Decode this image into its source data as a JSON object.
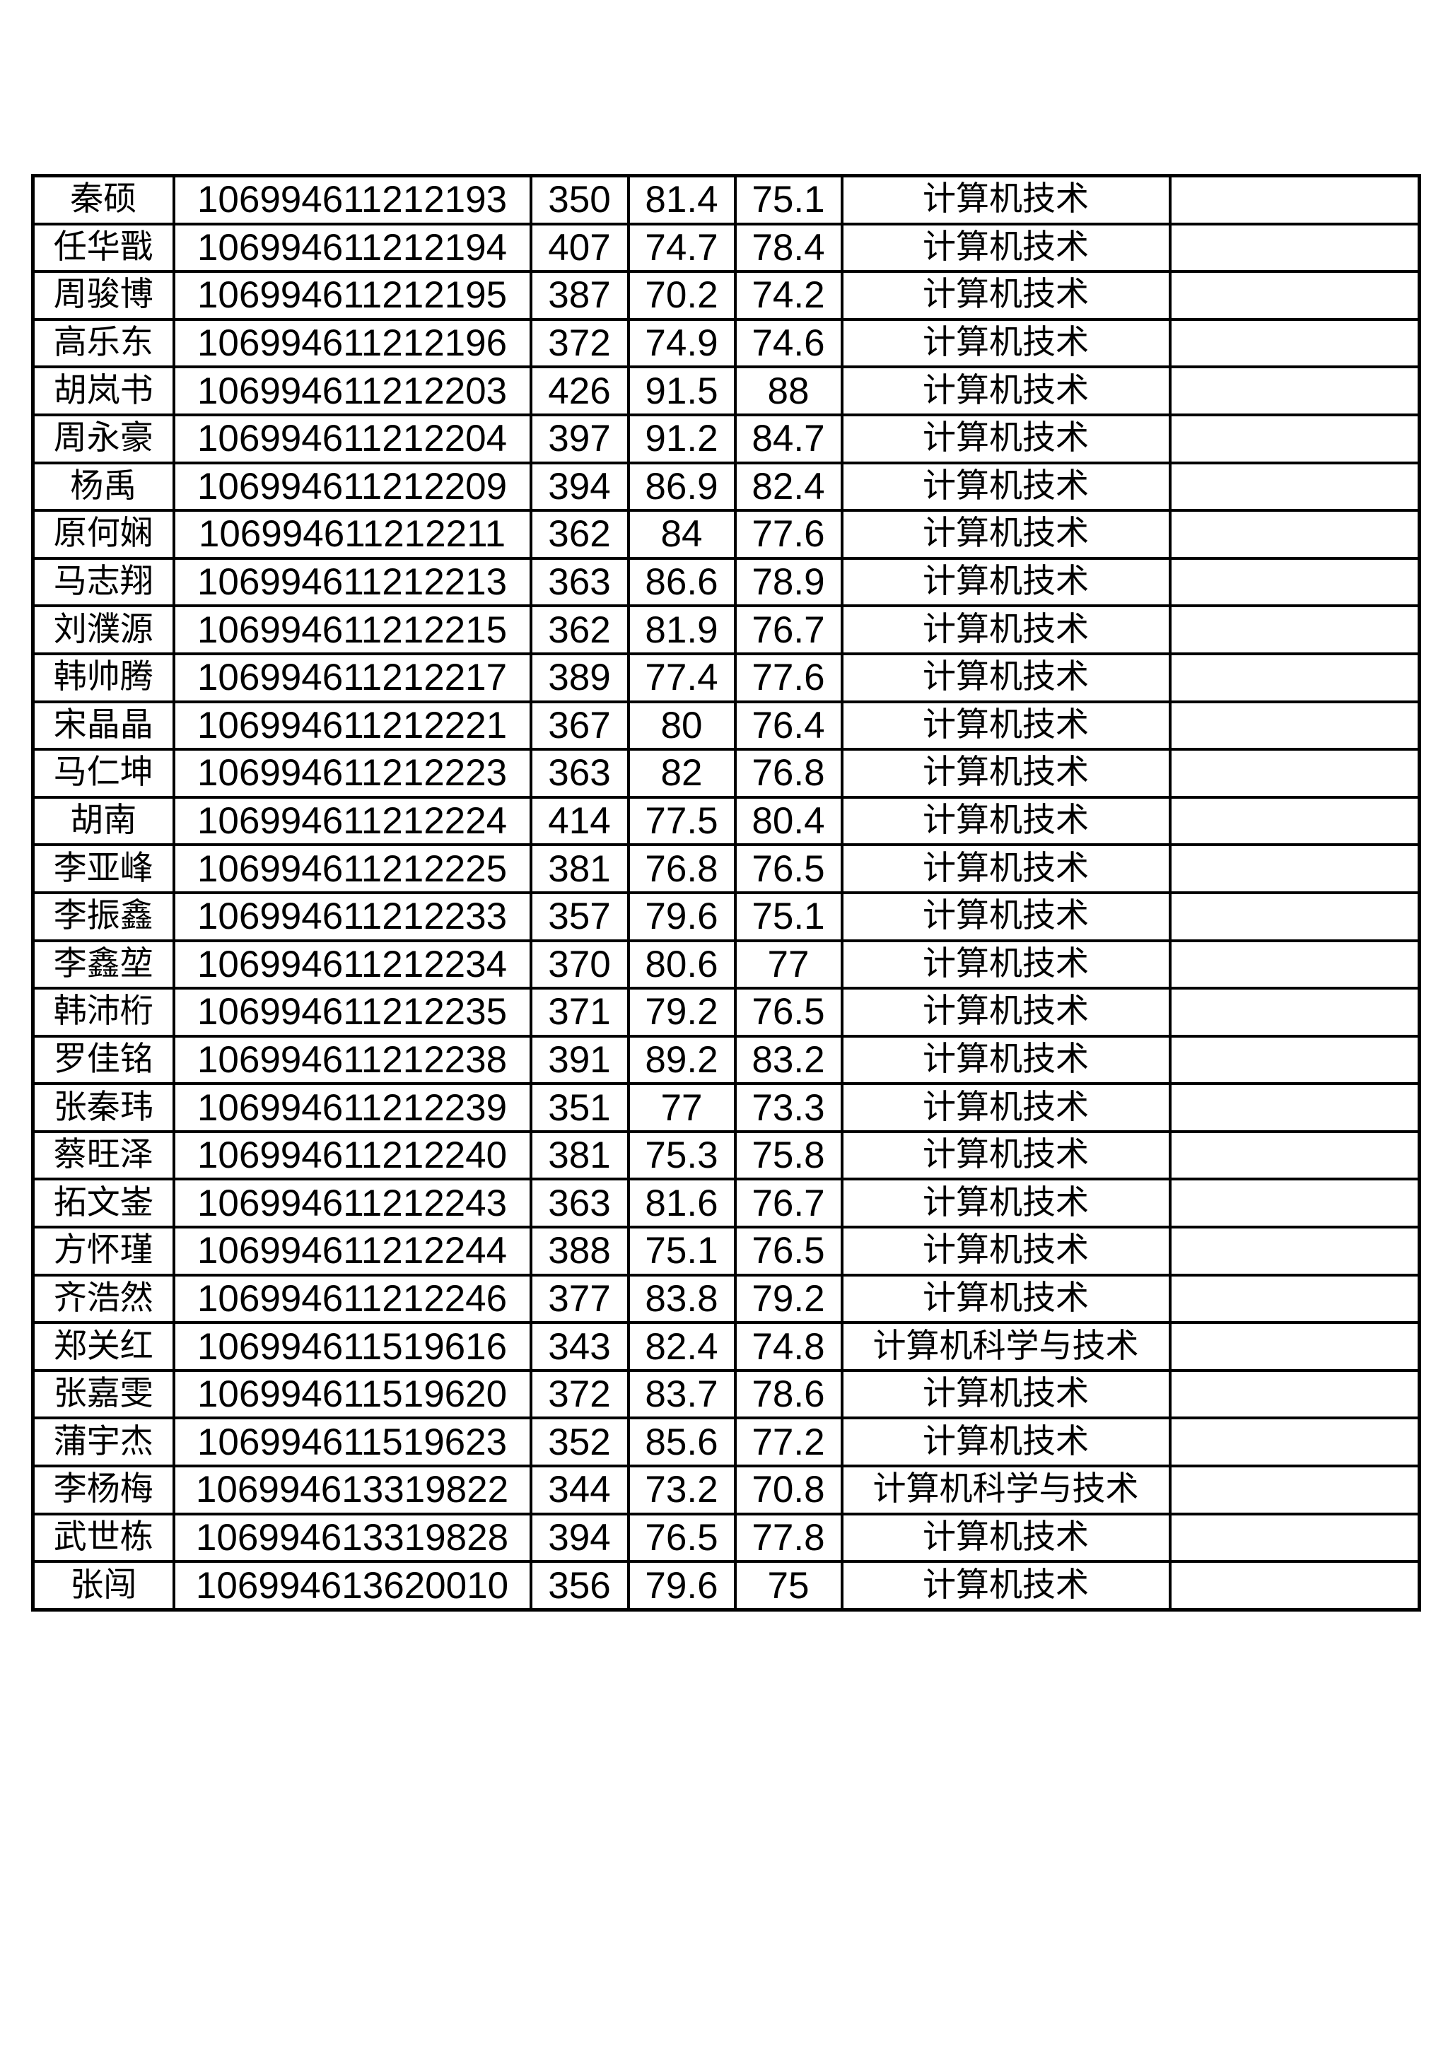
{
  "page": {
    "background_color": "#ffffff",
    "border_color": "#000000"
  },
  "table": {
    "fields": [
      "name",
      "candidate_no",
      "total_score",
      "score_1",
      "score_2",
      "major",
      "remark"
    ],
    "rows": [
      {
        "name": "秦硕",
        "candidate_no": "106994611212193",
        "total_score": "350",
        "score_1": "81.4",
        "score_2": "75.1",
        "major": "计算机技术",
        "remark": ""
      },
      {
        "name": "任华戬",
        "candidate_no": "106994611212194",
        "total_score": "407",
        "score_1": "74.7",
        "score_2": "78.4",
        "major": "计算机技术",
        "remark": ""
      },
      {
        "name": "周骏博",
        "candidate_no": "106994611212195",
        "total_score": "387",
        "score_1": "70.2",
        "score_2": "74.2",
        "major": "计算机技术",
        "remark": ""
      },
      {
        "name": "高乐东",
        "candidate_no": "106994611212196",
        "total_score": "372",
        "score_1": "74.9",
        "score_2": "74.6",
        "major": "计算机技术",
        "remark": ""
      },
      {
        "name": "胡岚书",
        "candidate_no": "106994611212203",
        "total_score": "426",
        "score_1": "91.5",
        "score_2": "88",
        "major": "计算机技术",
        "remark": ""
      },
      {
        "name": "周永豪",
        "candidate_no": "106994611212204",
        "total_score": "397",
        "score_1": "91.2",
        "score_2": "84.7",
        "major": "计算机技术",
        "remark": ""
      },
      {
        "name": "杨禹",
        "candidate_no": "106994611212209",
        "total_score": "394",
        "score_1": "86.9",
        "score_2": "82.4",
        "major": "计算机技术",
        "remark": ""
      },
      {
        "name": "原何娴",
        "candidate_no": "106994611212211",
        "total_score": "362",
        "score_1": "84",
        "score_2": "77.6",
        "major": "计算机技术",
        "remark": ""
      },
      {
        "name": "马志翔",
        "candidate_no": "106994611212213",
        "total_score": "363",
        "score_1": "86.6",
        "score_2": "78.9",
        "major": "计算机技术",
        "remark": ""
      },
      {
        "name": "刘濮源",
        "candidate_no": "106994611212215",
        "total_score": "362",
        "score_1": "81.9",
        "score_2": "76.7",
        "major": "计算机技术",
        "remark": ""
      },
      {
        "name": "韩帅腾",
        "candidate_no": "106994611212217",
        "total_score": "389",
        "score_1": "77.4",
        "score_2": "77.6",
        "major": "计算机技术",
        "remark": ""
      },
      {
        "name": "宋晶晶",
        "candidate_no": "106994611212221",
        "total_score": "367",
        "score_1": "80",
        "score_2": "76.4",
        "major": "计算机技术",
        "remark": ""
      },
      {
        "name": "马仁坤",
        "candidate_no": "106994611212223",
        "total_score": "363",
        "score_1": "82",
        "score_2": "76.8",
        "major": "计算机技术",
        "remark": ""
      },
      {
        "name": "胡南",
        "candidate_no": "106994611212224",
        "total_score": "414",
        "score_1": "77.5",
        "score_2": "80.4",
        "major": "计算机技术",
        "remark": ""
      },
      {
        "name": "李亚峰",
        "candidate_no": "106994611212225",
        "total_score": "381",
        "score_1": "76.8",
        "score_2": "76.5",
        "major": "计算机技术",
        "remark": ""
      },
      {
        "name": "李振鑫",
        "candidate_no": "106994611212233",
        "total_score": "357",
        "score_1": "79.6",
        "score_2": "75.1",
        "major": "计算机技术",
        "remark": ""
      },
      {
        "name": "李鑫堃",
        "candidate_no": "106994611212234",
        "total_score": "370",
        "score_1": "80.6",
        "score_2": "77",
        "major": "计算机技术",
        "remark": ""
      },
      {
        "name": "韩沛桁",
        "candidate_no": "106994611212235",
        "total_score": "371",
        "score_1": "79.2",
        "score_2": "76.5",
        "major": "计算机技术",
        "remark": ""
      },
      {
        "name": "罗佳铭",
        "candidate_no": "106994611212238",
        "total_score": "391",
        "score_1": "89.2",
        "score_2": "83.2",
        "major": "计算机技术",
        "remark": ""
      },
      {
        "name": "张秦玮",
        "candidate_no": "106994611212239",
        "total_score": "351",
        "score_1": "77",
        "score_2": "73.3",
        "major": "计算机技术",
        "remark": ""
      },
      {
        "name": "蔡旺泽",
        "candidate_no": "106994611212240",
        "total_score": "381",
        "score_1": "75.3",
        "score_2": "75.8",
        "major": "计算机技术",
        "remark": ""
      },
      {
        "name": "拓文崟",
        "candidate_no": "106994611212243",
        "total_score": "363",
        "score_1": "81.6",
        "score_2": "76.7",
        "major": "计算机技术",
        "remark": ""
      },
      {
        "name": "方怀瑾",
        "candidate_no": "106994611212244",
        "total_score": "388",
        "score_1": "75.1",
        "score_2": "76.5",
        "major": "计算机技术",
        "remark": ""
      },
      {
        "name": "齐浩然",
        "candidate_no": "106994611212246",
        "total_score": "377",
        "score_1": "83.8",
        "score_2": "79.2",
        "major": "计算机技术",
        "remark": ""
      },
      {
        "name": "郑关红",
        "candidate_no": "106994611519616",
        "total_score": "343",
        "score_1": "82.4",
        "score_2": "74.8",
        "major": "计算机科学与技术",
        "remark": ""
      },
      {
        "name": "张嘉雯",
        "candidate_no": "106994611519620",
        "total_score": "372",
        "score_1": "83.7",
        "score_2": "78.6",
        "major": "计算机技术",
        "remark": ""
      },
      {
        "name": "蒲宇杰",
        "candidate_no": "106994611519623",
        "total_score": "352",
        "score_1": "85.6",
        "score_2": "77.2",
        "major": "计算机技术",
        "remark": ""
      },
      {
        "name": "李杨梅",
        "candidate_no": "106994613319822",
        "total_score": "344",
        "score_1": "73.2",
        "score_2": "70.8",
        "major": "计算机科学与技术",
        "remark": ""
      },
      {
        "name": "武世栋",
        "candidate_no": "106994613319828",
        "total_score": "394",
        "score_1": "76.5",
        "score_2": "77.8",
        "major": "计算机技术",
        "remark": ""
      },
      {
        "name": "张闯",
        "candidate_no": "106994613620010",
        "total_score": "356",
        "score_1": "79.6",
        "score_2": "75",
        "major": "计算机技术",
        "remark": ""
      }
    ]
  }
}
